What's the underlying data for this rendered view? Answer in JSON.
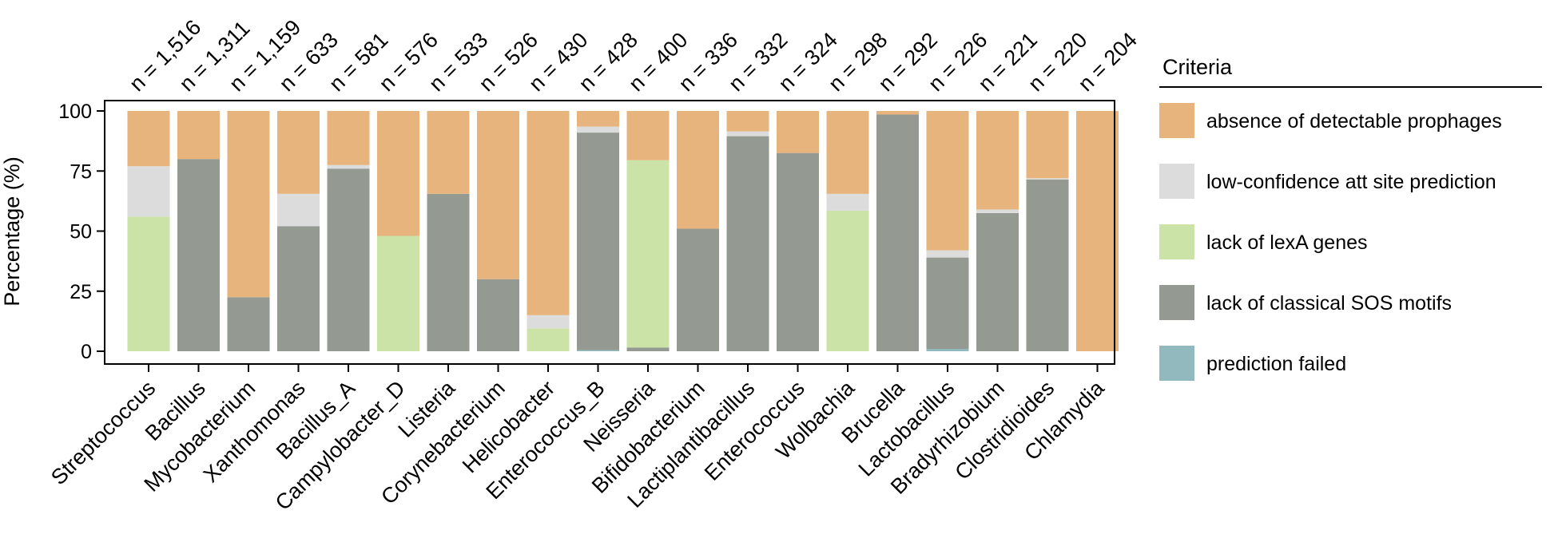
{
  "chart_data": {
    "type": "bar",
    "stacked": true,
    "ylabel": "Percentage (%)",
    "xlabel": "",
    "ylim": [
      0,
      100
    ],
    "yticks": [
      0,
      25,
      50,
      75,
      100
    ],
    "grid": false,
    "legend_position": "right",
    "legend_title": "Criteria",
    "categories": [
      "Streptococcus",
      "Bacillus",
      "Mycobacterium",
      "Xanthomonas",
      "Bacillus_A",
      "Campylobacter_D",
      "Listeria",
      "Corynebacterium",
      "Helicobacter",
      "Enterococcus_B",
      "Neisseria",
      "Bifidobacterium",
      "Lactiplantibacillus",
      "Enterococcus",
      "Wolbachia",
      "Brucella",
      "Lactobacillus",
      "Bradyrhizobium",
      "Clostridioides",
      "Chlamydia"
    ],
    "n_labels": [
      "n = 1,516",
      "n = 1,311",
      "n = 1,159",
      "n = 633",
      "n = 581",
      "n = 576",
      "n = 533",
      "n = 526",
      "n = 430",
      "n = 428",
      "n = 400",
      "n = 336",
      "n = 332",
      "n = 324",
      "n = 298",
      "n = 292",
      "n = 226",
      "n = 221",
      "n = 220",
      "n = 204"
    ],
    "series": [
      {
        "name": "prediction failed",
        "color": "#92b9bd",
        "values": [
          0,
          0,
          0,
          0,
          0,
          0,
          0,
          0,
          0,
          0.5,
          0,
          0,
          0,
          0,
          0,
          0,
          1,
          0,
          0,
          0
        ]
      },
      {
        "name": "lack of classical SOS motifs",
        "color": "#949a91",
        "values": [
          0,
          80,
          22.5,
          52,
          76,
          0,
          65.5,
          30,
          0,
          90.5,
          1.5,
          51,
          89.5,
          82.5,
          0,
          98.5,
          38,
          57.5,
          71.5,
          0
        ]
      },
      {
        "name": "lack of lexA genes",
        "color": "#cbe3a7",
        "values": [
          56,
          0,
          0,
          0,
          0,
          48,
          0,
          0,
          9.5,
          0,
          78,
          0,
          0,
          0,
          58.5,
          0,
          0,
          0,
          0,
          0
        ]
      },
      {
        "name": "low-confidence att site prediction",
        "color": "#dcdcdc",
        "values": [
          21,
          0,
          0,
          13.5,
          1.5,
          0,
          0,
          0,
          5.5,
          2.5,
          0,
          0,
          2,
          0,
          7,
          0,
          3,
          1.5,
          0.5,
          0
        ]
      },
      {
        "name": "absence of detectable prophages",
        "color": "#e6b47c",
        "values": [
          23,
          20,
          77.5,
          34.5,
          22.5,
          52,
          34.5,
          70,
          85,
          6.5,
          20.5,
          49,
          8.5,
          17.5,
          34.5,
          1.5,
          58,
          41,
          28,
          100
        ]
      }
    ],
    "legend_order": [
      "absence of detectable prophages",
      "low-confidence att site prediction",
      "lack of lexA genes",
      "lack of classical SOS motifs",
      "prediction failed"
    ]
  }
}
